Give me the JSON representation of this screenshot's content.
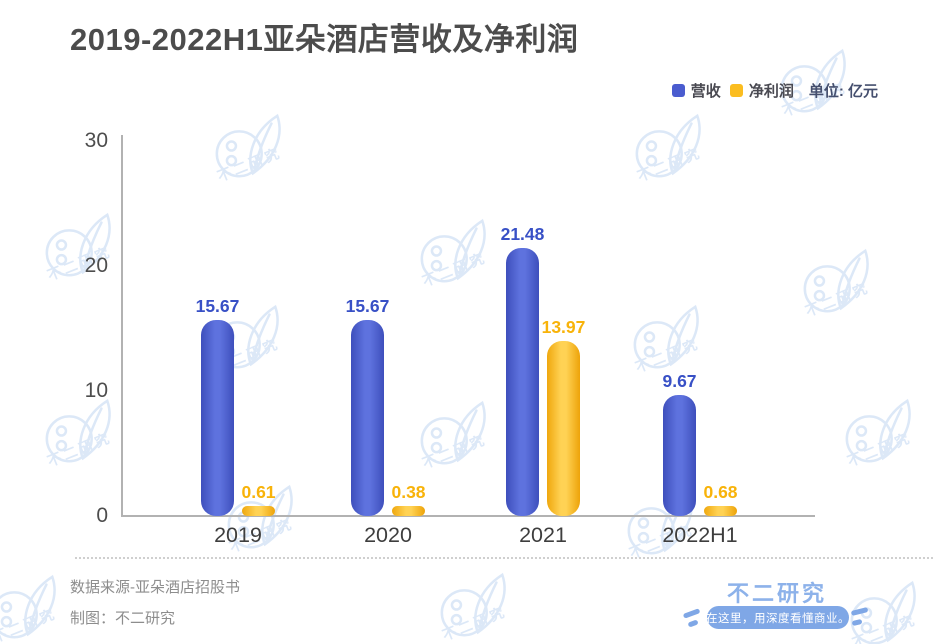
{
  "header": {
    "title": "2019-2022H1亚朵酒店营收及净利润"
  },
  "chart_data": {
    "type": "bar",
    "title": "2019-2022H1亚朵酒店营收及净利润",
    "categories": [
      "2019",
      "2020",
      "2021",
      "2022H1"
    ],
    "series": [
      {
        "name": "营收",
        "color": "#4a5ccf",
        "label_color": "#3850c6",
        "values": [
          15.67,
          15.67,
          21.48,
          9.67
        ]
      },
      {
        "name": "净利润",
        "color": "#fbbd20",
        "label_color": "#f8b30a",
        "values": [
          0.61,
          0.38,
          13.97,
          0.68
        ]
      }
    ],
    "unit_label": "单位: 亿元",
    "xlabel": "",
    "ylabel": "",
    "yaxis": {
      "ticks": [
        0,
        10,
        20,
        30
      ],
      "min": 0,
      "max": 30
    },
    "grid": false,
    "legend_position": "top-right"
  },
  "footer": {
    "source": "数据来源-亚朵酒店招股书",
    "credit": "制图：不二研究"
  },
  "brand": {
    "name": "不二研究",
    "tagline": "在这里，用深度看懂商业。",
    "watermark_text": "不二研究",
    "accent_blue": "#4a5ccf",
    "accent_yellow": "#fbbd20",
    "brand_blue": "#7fa7e6"
  }
}
